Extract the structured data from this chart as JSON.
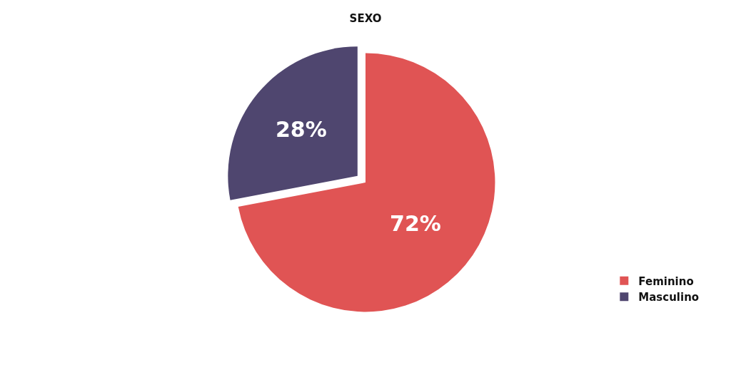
{
  "chart_data": {
    "type": "pie",
    "title": "SEXO",
    "categories": [
      "Feminino",
      "Masculino"
    ],
    "values": [
      72,
      28
    ],
    "colors": [
      "#e05454",
      "#4f466f"
    ],
    "value_labels": [
      "72%",
      "28%"
    ],
    "legend": "bottom right"
  }
}
